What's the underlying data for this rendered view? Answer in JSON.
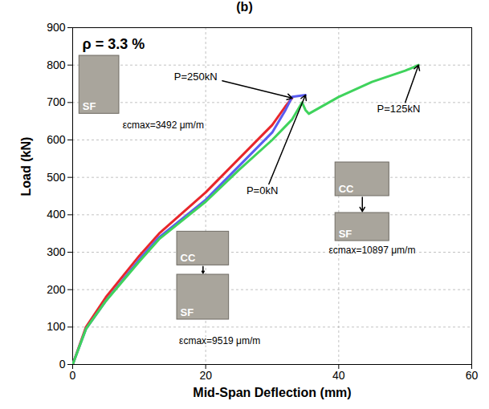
{
  "chart_data": {
    "type": "line",
    "title": "(b)",
    "xlabel": "Mid-Span Deflection (mm)",
    "ylabel": "Load (kN)",
    "xlim": [
      0,
      60
    ],
    "ylim": [
      0,
      900
    ],
    "xticks": [
      0,
      20,
      40,
      60
    ],
    "yticks": [
      0,
      100,
      200,
      300,
      400,
      500,
      600,
      700,
      800,
      900
    ],
    "grid": true,
    "series": [
      {
        "name": "P=250kN",
        "color": "#e8262b",
        "x": [
          0,
          2,
          5,
          10,
          13,
          20,
          25,
          30,
          32,
          33
        ],
        "values": [
          0,
          100,
          180,
          290,
          350,
          460,
          550,
          640,
          690,
          712
        ]
      },
      {
        "name": "P=0kN",
        "color": "#5a5cf0",
        "x": [
          0,
          2,
          5,
          10,
          13,
          20,
          25,
          30,
          32,
          33,
          35
        ],
        "values": [
          0,
          95,
          170,
          280,
          340,
          440,
          530,
          620,
          680,
          715,
          720
        ]
      },
      {
        "name": "P=125kN",
        "color": "#3fd35c",
        "x": [
          0,
          2,
          5,
          10,
          13,
          20,
          25,
          30,
          33,
          34.5,
          35,
          35.5,
          37,
          40,
          45,
          50,
          52
        ],
        "values": [
          0,
          95,
          170,
          275,
          335,
          435,
          520,
          600,
          655,
          700,
          680,
          670,
          685,
          715,
          755,
          785,
          800
        ]
      }
    ],
    "annotations": {
      "ratio": "ρ = 3.3 %",
      "strains": [
        "εcmax=3492 μm/m",
        "εcmax=9519 μm/m",
        "εcmax=10897 μm/m"
      ],
      "photo_labels": [
        "SF",
        "CC",
        "SF",
        "CC",
        "SF"
      ]
    }
  }
}
